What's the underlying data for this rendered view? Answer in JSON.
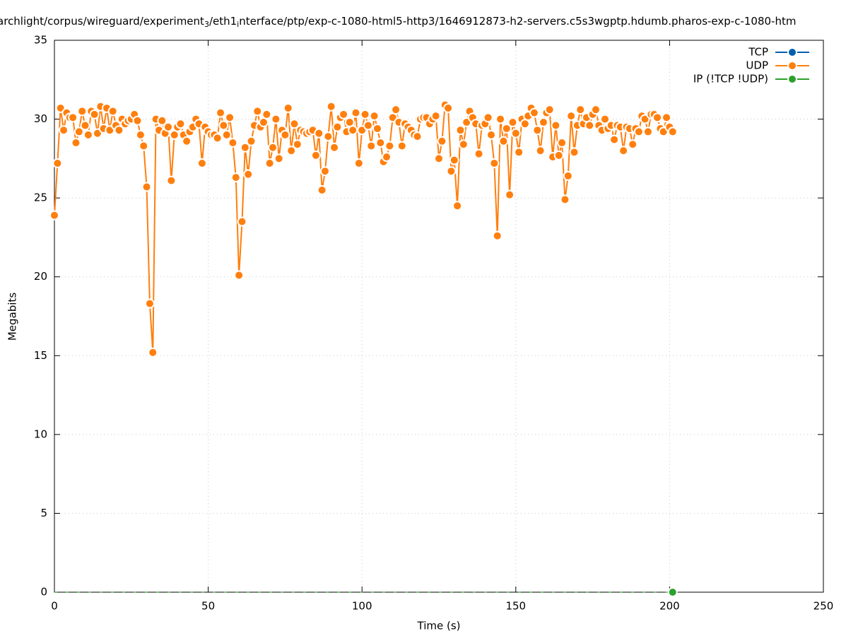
{
  "chart_data": {
    "type": "line",
    "title_parts": [
      "archlight/corpus/wireguard/experiment",
      "3",
      "/eth1",
      "i",
      "nterface/ptp/exp-c-1080-html5-http3/1646912873-h2-servers.c5s3wgptp.hdumb.pharos-exp-c-1080-htm"
    ],
    "x_label": "Time (s)",
    "y_label": "Megabits",
    "xlim": [
      0,
      250
    ],
    "xticks": [
      0,
      50,
      100,
      150,
      200,
      250
    ],
    "ylim": [
      0,
      35
    ],
    "yticks": [
      0,
      5,
      10,
      15,
      20,
      25,
      30,
      35
    ],
    "grid": true,
    "legend": "top-right",
    "x": [
      0,
      1,
      2,
      3,
      4,
      5,
      6,
      7,
      8,
      9,
      10,
      11,
      12,
      13,
      14,
      15,
      16,
      17,
      18,
      19,
      20,
      21,
      22,
      23,
      24,
      25,
      26,
      27,
      28,
      29,
      30,
      31,
      32,
      33,
      34,
      35,
      36,
      37,
      38,
      39,
      40,
      41,
      42,
      43,
      44,
      45,
      46,
      47,
      48,
      49,
      50,
      51,
      52,
      53,
      54,
      55,
      56,
      57,
      58,
      59,
      60,
      61,
      62,
      63,
      64,
      65,
      66,
      67,
      68,
      69,
      70,
      71,
      72,
      73,
      74,
      75,
      76,
      77,
      78,
      79,
      80,
      81,
      82,
      83,
      84,
      85,
      86,
      87,
      88,
      89,
      90,
      91,
      92,
      93,
      94,
      95,
      96,
      97,
      98,
      99,
      100,
      101,
      102,
      103,
      104,
      105,
      106,
      107,
      108,
      109,
      110,
      111,
      112,
      113,
      114,
      115,
      116,
      117,
      118,
      119,
      120,
      121,
      122,
      123,
      124,
      125,
      126,
      127,
      128,
      129,
      130,
      131,
      132,
      133,
      134,
      135,
      136,
      137,
      138,
      139,
      140,
      141,
      142,
      143,
      144,
      145,
      146,
      147,
      148,
      149,
      150,
      151,
      152,
      153,
      154,
      155,
      156,
      157,
      158,
      159,
      160,
      161,
      162,
      163,
      164,
      165,
      166,
      167,
      168,
      169,
      170,
      171,
      172,
      173,
      174,
      175,
      176,
      177,
      178,
      179,
      180,
      181,
      182,
      183,
      184,
      185,
      186,
      187,
      188,
      189,
      190,
      191,
      192,
      193,
      194,
      195,
      196,
      197,
      198,
      199,
      200,
      201
    ],
    "series": [
      {
        "name": "TCP",
        "color": "#0060ad",
        "values": [
          null,
          null,
          null,
          null,
          null,
          null,
          null,
          null,
          null,
          null,
          null,
          null,
          null,
          null,
          null,
          null,
          null,
          null,
          null,
          null,
          null,
          null,
          null,
          null,
          null,
          null,
          null,
          null,
          null,
          null,
          null,
          null,
          null,
          null,
          null,
          null,
          null,
          null,
          null,
          null,
          null,
          null,
          null,
          null,
          null,
          null,
          null,
          null,
          null,
          null,
          null,
          null,
          null,
          null,
          null,
          null,
          null,
          null,
          null,
          null,
          null,
          null,
          null,
          null,
          null,
          null,
          null,
          null,
          null,
          null,
          null,
          null,
          null,
          null,
          null,
          null,
          null,
          null,
          null,
          null,
          null,
          null,
          null,
          null,
          null,
          null,
          null,
          null,
          null,
          null,
          null,
          null,
          null,
          null,
          null,
          null,
          null,
          null,
          null,
          null,
          null,
          null,
          null,
          null,
          null,
          null,
          null,
          null,
          null,
          null,
          null,
          null,
          null,
          null,
          null,
          null,
          null,
          null,
          null,
          null,
          null,
          null,
          null,
          null,
          null,
          null,
          null,
          null,
          null,
          null,
          null,
          null,
          null,
          null,
          null,
          null,
          null,
          null,
          null,
          null,
          null,
          null,
          null,
          null,
          null,
          null,
          null,
          null,
          null,
          null,
          null,
          null,
          null,
          null,
          null,
          null,
          null,
          null,
          null,
          null,
          null,
          null,
          null,
          null,
          null,
          null,
          null,
          null,
          null,
          null,
          null,
          null,
          null,
          null,
          null,
          null,
          null,
          null,
          null,
          null,
          null,
          null,
          null,
          null,
          null,
          null,
          null,
          null,
          null,
          null,
          null,
          null,
          null,
          null,
          null,
          null,
          null,
          null,
          null,
          null,
          null,
          null
        ]
      },
      {
        "name": "UDP",
        "color": "#ff7f0e",
        "values": [
          23.9,
          27.2,
          30.7,
          29.3,
          30.4,
          30.1,
          30.1,
          28.5,
          29.2,
          30.5,
          29.6,
          29.0,
          30.5,
          30.3,
          29.1,
          30.8,
          29.4,
          30.7,
          29.3,
          30.5,
          29.6,
          29.3,
          30.0,
          29.7,
          29.9,
          30.0,
          30.3,
          29.9,
          29.0,
          28.3,
          25.7,
          18.3,
          15.2,
          30.0,
          29.3,
          29.9,
          29.1,
          29.5,
          26.1,
          29.0,
          29.5,
          29.7,
          29.0,
          28.6,
          29.2,
          29.5,
          30.0,
          29.7,
          27.2,
          29.5,
          29.2,
          29.0,
          29.0,
          28.8,
          30.4,
          29.6,
          29.0,
          30.1,
          28.5,
          26.3,
          20.1,
          23.5,
          28.2,
          26.5,
          28.6,
          29.6,
          30.5,
          29.5,
          29.8,
          30.3,
          27.2,
          28.2,
          30.0,
          27.5,
          29.3,
          29.0,
          30.7,
          28.0,
          29.7,
          28.4,
          29.3,
          29.2,
          29.1,
          29.2,
          29.3,
          27.7,
          29.1,
          25.5,
          26.7,
          28.9,
          30.8,
          28.2,
          29.5,
          30.1,
          30.3,
          29.2,
          29.8,
          29.3,
          30.4,
          27.2,
          29.3,
          30.3,
          29.6,
          28.3,
          30.2,
          29.4,
          28.5,
          27.3,
          27.6,
          28.3,
          30.1,
          30.6,
          29.8,
          28.3,
          29.7,
          29.5,
          29.3,
          29.0,
          28.9,
          30.0,
          30.1,
          30.1,
          29.7,
          30.0,
          30.2,
          27.5,
          28.6,
          30.9,
          30.7,
          26.7,
          27.4,
          24.5,
          29.3,
          28.4,
          29.8,
          30.5,
          30.1,
          29.7,
          27.8,
          29.6,
          29.7,
          30.1,
          29.0,
          27.2,
          22.6,
          30.0,
          28.6,
          29.4,
          25.2,
          29.8,
          29.1,
          27.9,
          30.0,
          29.7,
          30.2,
          30.7,
          30.4,
          29.3,
          28.0,
          29.8,
          30.4,
          30.6,
          27.6,
          29.6,
          27.7,
          28.5,
          24.9,
          26.4,
          30.2,
          27.9,
          29.6,
          30.6,
          29.7,
          30.1,
          29.6,
          30.3,
          30.6,
          29.6,
          29.3,
          30.0,
          29.4,
          29.6,
          28.7,
          29.6,
          29.5,
          28.0,
          29.5,
          29.4,
          28.4,
          29.4,
          29.2,
          30.2,
          30.0,
          29.2,
          30.3,
          30.3,
          30.1,
          29.4,
          29.2,
          30.1,
          29.5,
          29.2
        ]
      },
      {
        "name": "IP (!TCP  !UDP)",
        "color": "#2ca02c",
        "values": [
          0,
          0,
          0,
          0,
          0,
          0,
          0,
          0,
          0,
          0,
          0,
          0,
          0,
          0,
          0,
          0,
          0,
          0,
          0,
          0,
          0,
          0,
          0,
          0,
          0,
          0,
          0,
          0,
          0,
          0,
          0,
          0,
          0,
          0,
          0,
          0,
          0,
          0,
          0,
          0,
          0,
          0,
          0,
          0,
          0,
          0,
          0,
          0,
          0,
          0,
          0,
          0,
          0,
          0,
          0,
          0,
          0,
          0,
          0,
          0,
          0,
          0,
          0,
          0,
          0,
          0,
          0,
          0,
          0,
          0,
          0,
          0,
          0,
          0,
          0,
          0,
          0,
          0,
          0,
          0,
          0,
          0,
          0,
          0,
          0,
          0,
          0,
          0,
          0,
          0,
          0,
          0,
          0,
          0,
          0,
          0,
          0,
          0,
          0,
          0,
          0,
          0,
          0,
          0,
          0,
          0,
          0,
          0,
          0,
          0,
          0,
          0,
          0,
          0,
          0,
          0,
          0,
          0,
          0,
          0,
          0,
          0,
          0,
          0,
          0,
          0,
          0,
          0,
          0,
          0,
          0,
          0,
          0,
          0,
          0,
          0,
          0,
          0,
          0,
          0,
          0,
          0,
          0,
          0,
          0,
          0,
          0,
          0,
          0,
          0,
          0,
          0,
          0,
          0,
          0,
          0,
          0,
          0,
          0,
          0,
          0,
          0,
          0,
          0,
          0,
          0,
          0,
          0,
          0,
          0,
          0,
          0,
          0,
          0,
          0,
          0,
          0,
          0,
          0,
          0,
          0,
          0,
          0,
          0,
          0,
          0,
          0,
          0,
          0,
          0,
          0,
          0,
          0,
          0,
          0,
          0,
          0,
          0,
          0,
          0,
          0,
          0
        ]
      }
    ]
  }
}
